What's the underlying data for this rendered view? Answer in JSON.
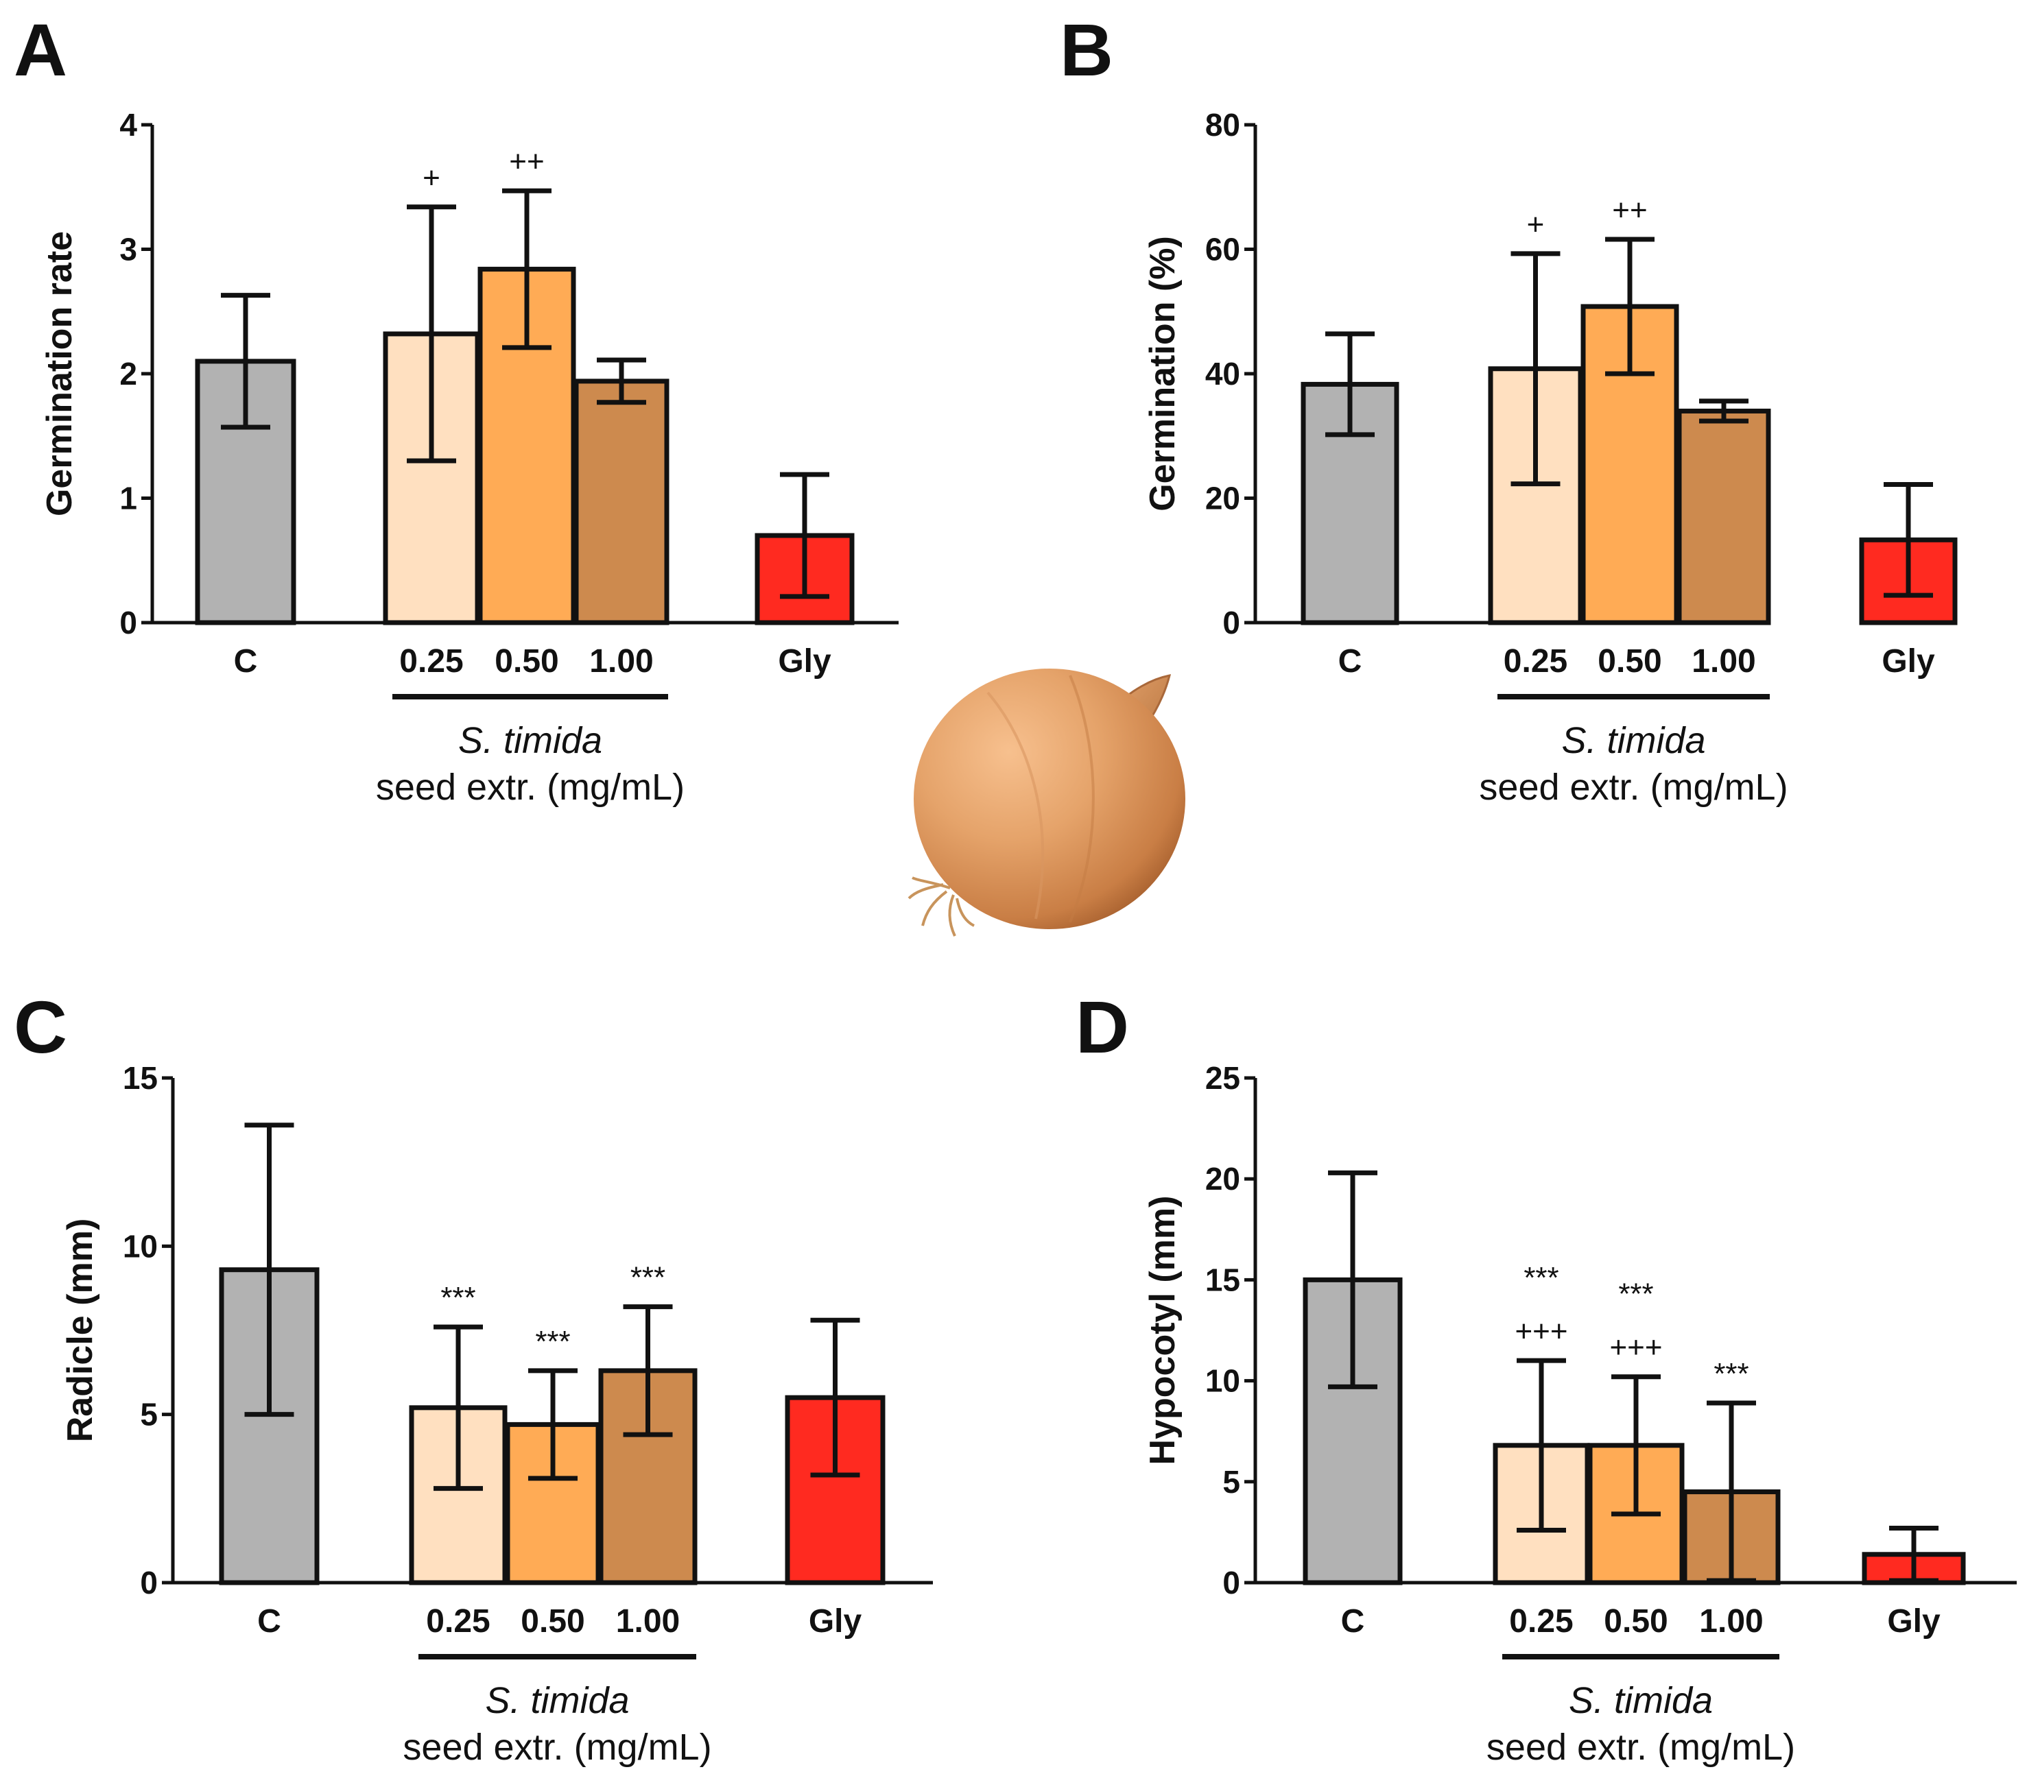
{
  "chart_data": [
    {
      "type": "bar",
      "panel": "A",
      "ylabel": "Germination rate",
      "xlabel": "",
      "ylim": [
        0,
        4
      ],
      "yticks": [
        0,
        1,
        2,
        3,
        4
      ],
      "categories": [
        "C",
        "0.25",
        "0.50",
        "1.00",
        "Gly"
      ],
      "values": [
        2.1,
        2.32,
        2.84,
        1.94,
        0.7
      ],
      "errors": [
        0.53,
        1.02,
        0.63,
        0.17,
        0.49
      ],
      "significance": [
        "",
        "+",
        "++",
        "",
        ""
      ],
      "group_label": [
        "S. timida",
        "seed extr. (mg/mL)"
      ]
    },
    {
      "type": "bar",
      "panel": "B",
      "ylabel": "Germination (%)",
      "xlabel": "",
      "ylim": [
        0,
        80
      ],
      "yticks": [
        0,
        20,
        40,
        60,
        80
      ],
      "categories": [
        "C",
        "0.25",
        "0.50",
        "1.00",
        "Gly"
      ],
      "values": [
        38.3,
        40.8,
        50.8,
        34.0,
        13.3
      ],
      "errors": [
        8.1,
        18.5,
        10.8,
        1.6,
        8.9
      ],
      "significance": [
        "",
        "+",
        "++",
        "",
        ""
      ],
      "group_label": [
        "S. timida",
        "seed extr. (mg/mL)"
      ]
    },
    {
      "type": "bar",
      "panel": "C",
      "ylabel": "Radicle (mm)",
      "xlabel": "",
      "ylim": [
        0,
        15
      ],
      "yticks": [
        0,
        5,
        10,
        15
      ],
      "categories": [
        "C",
        "0.25",
        "0.50",
        "1.00",
        "Gly"
      ],
      "values": [
        9.3,
        5.2,
        4.7,
        6.3,
        5.5
      ],
      "errors": [
        4.3,
        2.4,
        1.6,
        1.9,
        2.3
      ],
      "significance": [
        "",
        "***",
        "***",
        "***",
        ""
      ],
      "group_label": [
        "S. timida",
        "seed extr. (mg/mL)"
      ]
    },
    {
      "type": "bar",
      "panel": "D",
      "ylabel": "Hypocotyl (mm)",
      "xlabel": "",
      "ylim": [
        0,
        25
      ],
      "yticks": [
        0,
        5,
        10,
        15,
        20,
        25
      ],
      "categories": [
        "C",
        "0.25",
        "0.50",
        "1.00",
        "Gly"
      ],
      "values": [
        15.0,
        6.8,
        6.8,
        4.5,
        1.4
      ],
      "errors": [
        5.3,
        4.2,
        3.4,
        4.4,
        1.3
      ],
      "significance": [
        "",
        "***\n+++",
        "***\n+++",
        "***",
        ""
      ],
      "group_label": [
        "S. timida",
        "seed extr. (mg/mL)"
      ]
    }
  ],
  "colors": {
    "control": "#b2b2b2",
    "dose_0_25": "#ffe0c0",
    "dose_0_50": "#ffab55",
    "dose_1_00": "#cd8a4e",
    "glyphosate": "#ff2a20",
    "ink": "#111111"
  },
  "decoration": {
    "center_image": "onion-illustration"
  }
}
